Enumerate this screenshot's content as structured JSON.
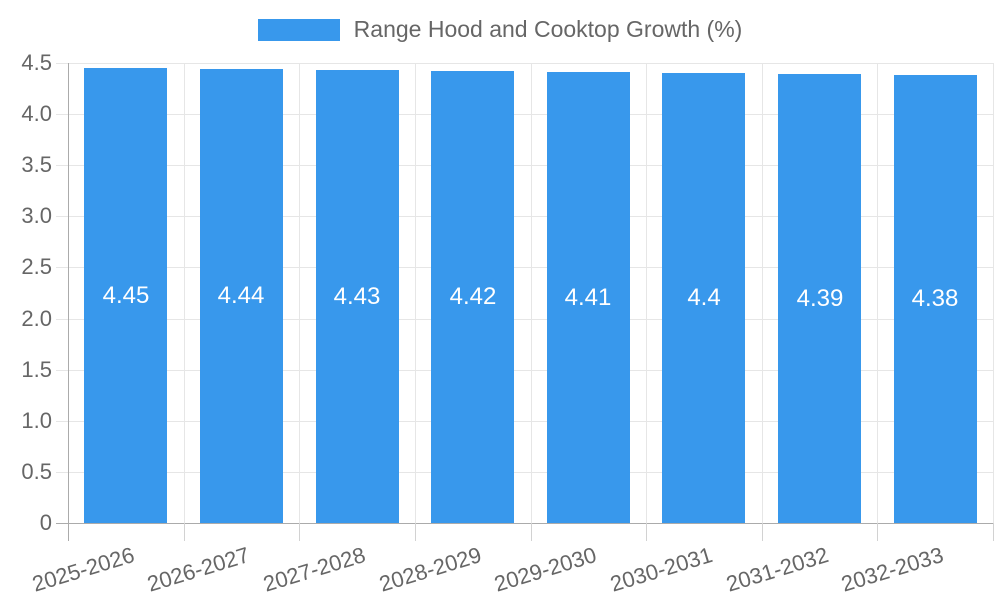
{
  "legend": {
    "label": "Range Hood and Cooktop Growth (%)"
  },
  "chart_data": {
    "type": "bar",
    "title": "",
    "xlabel": "",
    "ylabel": "",
    "categories": [
      "2025-2026",
      "2026-2027",
      "2027-2028",
      "2028-2029",
      "2029-2030",
      "2030-2031",
      "2031-2032",
      "2032-2033"
    ],
    "series": [
      {
        "name": "Range Hood and Cooktop Growth (%)",
        "values": [
          4.45,
          4.44,
          4.43,
          4.42,
          4.41,
          4.4,
          4.39,
          4.38
        ]
      }
    ],
    "value_labels": [
      "4.45",
      "4.44",
      "4.43",
      "4.42",
      "4.41",
      "4.4",
      "4.39",
      "4.38"
    ],
    "ylim": [
      0,
      4.5
    ],
    "ytick_step": 0.5,
    "ytick_labels": [
      "0",
      "0.5",
      "1.0",
      "1.5",
      "2.0",
      "2.5",
      "3.0",
      "3.5",
      "4.0",
      "4.5"
    ],
    "grid": true,
    "legend_position": "top",
    "bar_label_position": "center",
    "xtick_rotation_deg": -17,
    "colors": {
      "bar": "#3898ec",
      "text": "#666666",
      "grid": "#e6e6e6",
      "axis": "#ababab",
      "minor_tick": "#d2d2d2",
      "value_label": "#ffffff",
      "background": "#ffffff"
    }
  }
}
